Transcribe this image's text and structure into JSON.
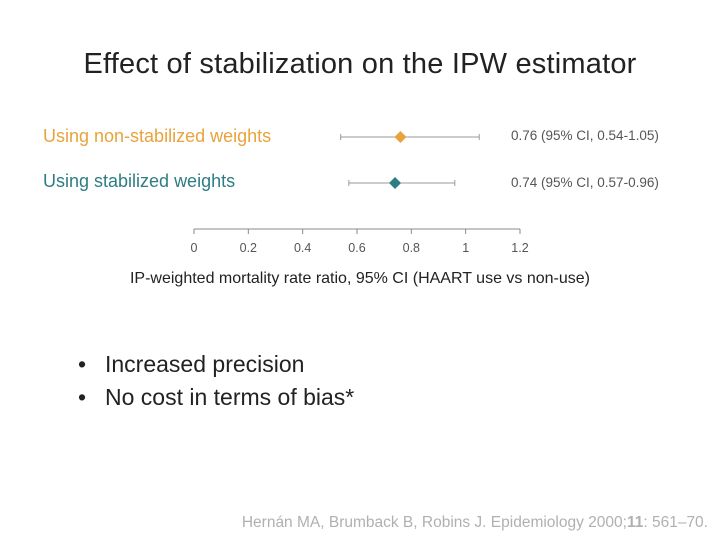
{
  "slide": {
    "title": "Effect of stabilization on the IPW estimator",
    "bullets": [
      "Increased precision",
      "No cost in terms of bias*"
    ],
    "bullet_symbol": "•",
    "citation": {
      "authors": "Hernán MA, Brumback B, Robins J. Epidemiology 2000;",
      "volume": "11",
      "pages": ": 561–70."
    }
  },
  "chart_data": {
    "type": "forest",
    "xlabel": "IP-weighted mortality rate ratio, 95% CI (HAART use vs non-use)",
    "xlim": [
      0,
      1.2
    ],
    "xticks": [
      0,
      0.2,
      0.4,
      0.6,
      0.8,
      1,
      1.2
    ],
    "xtick_labels": [
      "0",
      "0.2",
      "0.4",
      "0.6",
      "0.8",
      "1",
      "1.2"
    ],
    "series": [
      {
        "name": "Using non-stabilized weights",
        "estimate": 0.76,
        "lower": 0.54,
        "upper": 1.05,
        "ci_text": "0.76 (95% CI, 0.54-1.05)",
        "color": "#E8A33C",
        "marker": "diamond"
      },
      {
        "name": "Using stabilized weights",
        "estimate": 0.74,
        "lower": 0.57,
        "upper": 0.96,
        "ci_text": "0.74 (95% CI, 0.57-0.96)",
        "color": "#2E7D83",
        "marker": "diamond"
      }
    ]
  }
}
